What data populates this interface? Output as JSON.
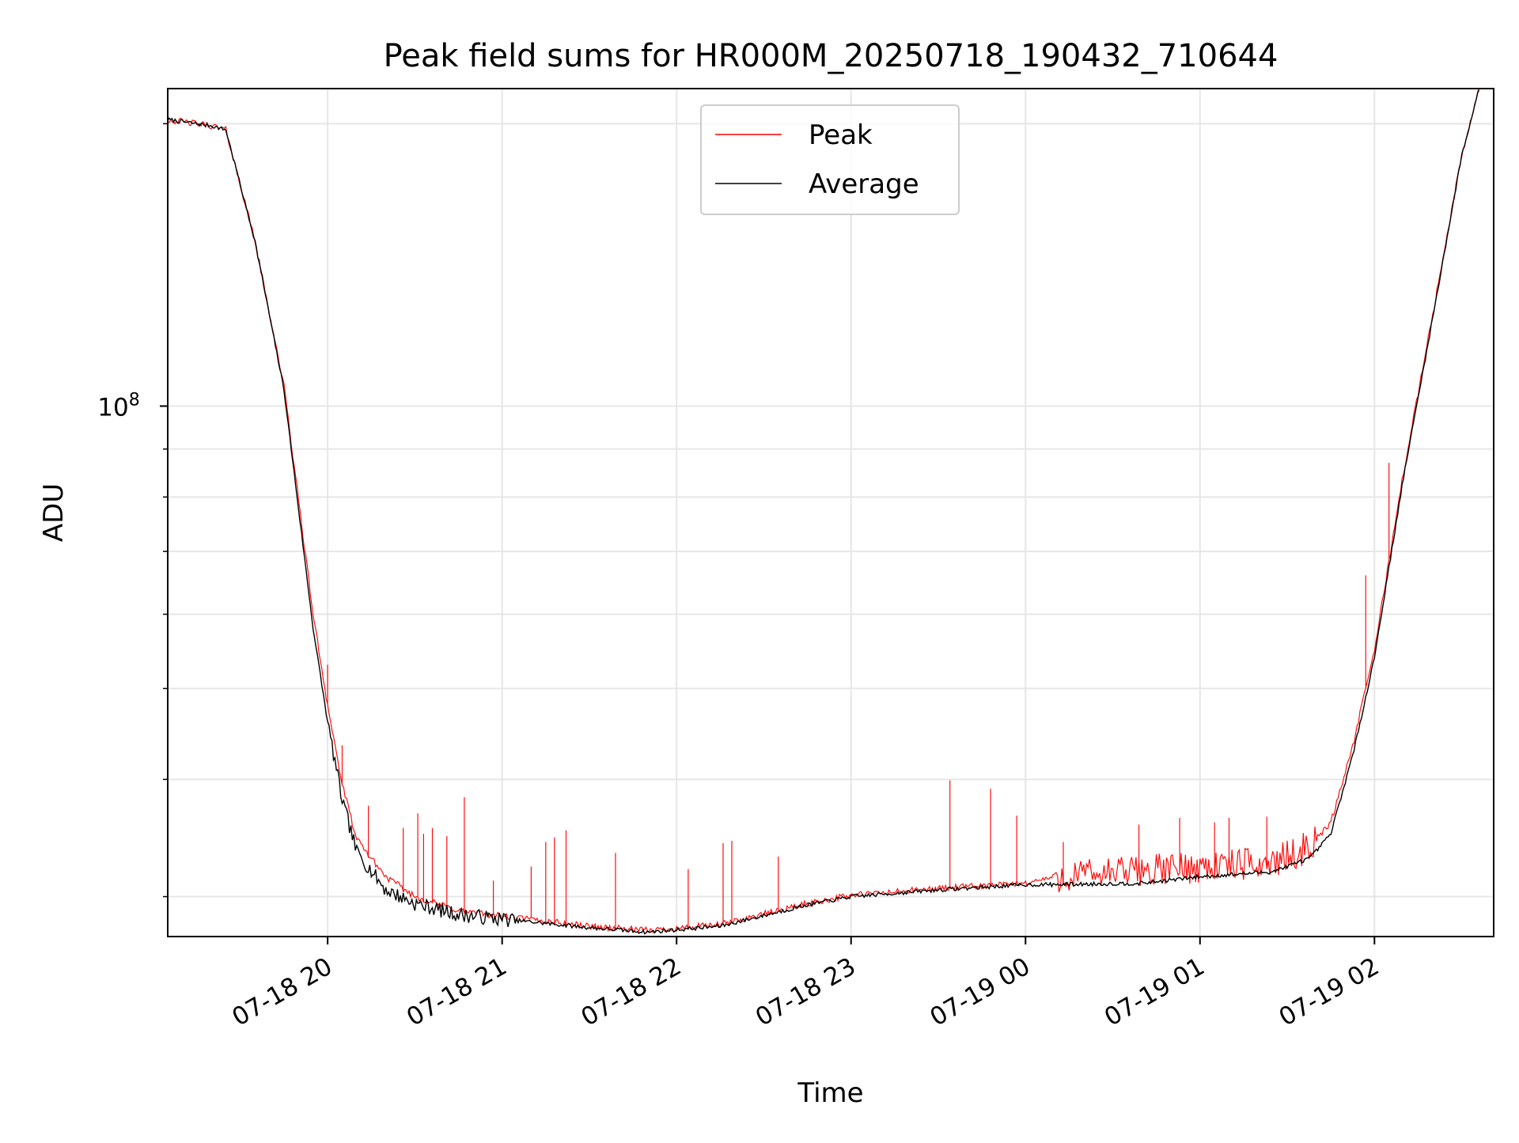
{
  "chart_data": {
    "type": "line",
    "title": "Peak field sums for HR000M_20250718_190432_710644",
    "xlabel": "Time",
    "ylabel": "ADU",
    "y_scale": "log",
    "grid": true,
    "legend_position": "top-center",
    "x_tick_labels": [
      "07-18 20",
      "07-18 21",
      "07-18 22",
      "07-18 23",
      "07-19 00",
      "07-19 01",
      "07-19 02"
    ],
    "y_tick_labels": [
      {
        "base": "10",
        "exp": "8"
      }
    ],
    "x_range": [
      "2025-07-18 19:05",
      "2025-07-19 02:41"
    ],
    "ylim": [
      27200000,
      218000000
    ],
    "series": [
      {
        "name": "Peak",
        "color": "#ff0000",
        "baseline": [
          [
            "2025-07-18 19:05",
            202000000
          ],
          [
            "2025-07-18 19:20",
            199000000
          ],
          [
            "2025-07-18 19:25",
            197000000
          ],
          [
            "2025-07-18 19:35",
            150000000
          ],
          [
            "2025-07-18 19:45",
            105000000
          ],
          [
            "2025-07-18 19:55",
            60000000
          ],
          [
            "2025-07-18 20:00",
            48000000
          ],
          [
            "2025-07-18 20:05",
            39500000
          ],
          [
            "2025-07-18 20:10",
            34500000
          ],
          [
            "2025-07-18 20:20",
            31500000
          ],
          [
            "2025-07-18 20:30",
            30000000
          ],
          [
            "2025-07-18 20:45",
            29000000
          ],
          [
            "2025-07-18 21:00",
            28600000
          ],
          [
            "2025-07-18 21:30",
            27900000
          ],
          [
            "2025-07-18 21:50",
            27600000
          ],
          [
            "2025-07-18 22:15",
            28000000
          ],
          [
            "2025-07-18 22:45",
            29500000
          ],
          [
            "2025-07-18 23:00",
            30100000
          ],
          [
            "2025-07-18 23:30",
            30600000
          ],
          [
            "2025-07-19 00:00",
            31000000
          ],
          [
            "2025-07-19 00:10",
            31500000
          ],
          [
            "2025-07-19 00:40",
            32000000
          ],
          [
            "2025-07-19 01:00",
            32300000
          ],
          [
            "2025-07-19 01:25",
            32600000
          ],
          [
            "2025-07-19 01:38",
            34000000
          ],
          [
            "2025-07-19 01:45",
            36000000
          ],
          [
            "2025-07-19 01:53",
            44000000
          ],
          [
            "2025-07-19 02:00",
            55000000
          ],
          [
            "2025-07-19 02:10",
            85000000
          ],
          [
            "2025-07-19 02:20",
            125000000
          ],
          [
            "2025-07-19 02:30",
            185000000
          ],
          [
            "2025-07-19 02:36",
            218000000
          ]
        ],
        "spikes": [
          [
            "2025-07-18 20:00",
            53000000
          ],
          [
            "2025-07-18 20:05",
            43500000
          ],
          [
            "2025-07-18 20:14",
            37500000
          ],
          [
            "2025-07-18 20:26",
            35500000
          ],
          [
            "2025-07-18 20:31",
            36800000
          ],
          [
            "2025-07-18 20:33",
            35000000
          ],
          [
            "2025-07-18 20:36",
            35500000
          ],
          [
            "2025-07-18 20:41",
            34800000
          ],
          [
            "2025-07-18 20:47",
            38300000
          ],
          [
            "2025-07-18 20:57",
            31200000
          ],
          [
            "2025-07-18 21:10",
            32300000
          ],
          [
            "2025-07-18 21:15",
            34300000
          ],
          [
            "2025-07-18 21:18",
            34700000
          ],
          [
            "2025-07-18 21:22",
            35300000
          ],
          [
            "2025-07-18 21:39",
            33400000
          ],
          [
            "2025-07-18 22:04",
            32100000
          ],
          [
            "2025-07-18 22:16",
            34200000
          ],
          [
            "2025-07-18 22:19",
            34400000
          ],
          [
            "2025-07-18 22:35",
            33100000
          ],
          [
            "2025-07-18 23:34",
            39900000
          ],
          [
            "2025-07-18 23:48",
            39100000
          ],
          [
            "2025-07-18 23:57",
            36600000
          ],
          [
            "2025-07-19 00:13",
            34300000
          ],
          [
            "2025-07-19 00:39",
            35800000
          ],
          [
            "2025-07-19 00:53",
            36400000
          ],
          [
            "2025-07-19 01:05",
            36000000
          ],
          [
            "2025-07-19 01:10",
            36400000
          ],
          [
            "2025-07-19 01:23",
            36500000
          ],
          [
            "2025-07-19 01:57",
            66000000
          ],
          [
            "2025-07-19 02:05",
            87000000
          ]
        ]
      },
      {
        "name": "Average",
        "color": "#000000",
        "baseline": [
          [
            "2025-07-18 19:05",
            202000000
          ],
          [
            "2025-07-18 19:20",
            199000000
          ],
          [
            "2025-07-18 19:25",
            197000000
          ],
          [
            "2025-07-18 19:35",
            150000000
          ],
          [
            "2025-07-18 19:45",
            104000000
          ],
          [
            "2025-07-18 19:55",
            58000000
          ],
          [
            "2025-07-18 20:00",
            46000000
          ],
          [
            "2025-07-18 20:05",
            38000000
          ],
          [
            "2025-07-18 20:10",
            33500000
          ],
          [
            "2025-07-18 20:20",
            30500000
          ],
          [
            "2025-07-18 20:30",
            29500000
          ],
          [
            "2025-07-18 20:45",
            28700000
          ],
          [
            "2025-07-18 21:00",
            28400000
          ],
          [
            "2025-07-18 21:30",
            27800000
          ],
          [
            "2025-07-18 21:50",
            27500000
          ],
          [
            "2025-07-18 22:15",
            27900000
          ],
          [
            "2025-07-18 22:45",
            29400000
          ],
          [
            "2025-07-18 23:00",
            30000000
          ],
          [
            "2025-07-18 23:30",
            30500000
          ],
          [
            "2025-07-19 00:00",
            30900000
          ],
          [
            "2025-07-19 00:10",
            30900000
          ],
          [
            "2025-07-19 00:40",
            31000000
          ],
          [
            "2025-07-19 01:00",
            31500000
          ],
          [
            "2025-07-19 01:25",
            31900000
          ],
          [
            "2025-07-19 01:38",
            33000000
          ],
          [
            "2025-07-19 01:45",
            35000000
          ],
          [
            "2025-07-19 01:53",
            43000000
          ],
          [
            "2025-07-19 02:00",
            54000000
          ],
          [
            "2025-07-19 02:10",
            84000000
          ],
          [
            "2025-07-19 02:20",
            124000000
          ],
          [
            "2025-07-19 02:30",
            185000000
          ],
          [
            "2025-07-19 02:36",
            218000000
          ]
        ]
      }
    ]
  }
}
